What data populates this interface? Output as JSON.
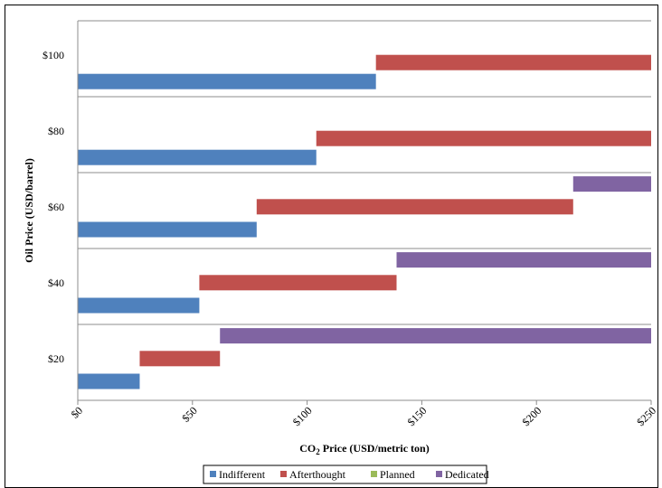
{
  "chart_data": {
    "type": "bar",
    "orientation": "horizontal-range",
    "xlabel_main": "CO",
    "xlabel_sub": "2",
    "xlabel_rest": " Price (USD/metric ton)",
    "ylabel": "Oil Price (USD/barrel)",
    "xlim": [
      0,
      250
    ],
    "x_ticks": [
      {
        "value": 0,
        "label": "$0"
      },
      {
        "value": 50,
        "label": "$50"
      },
      {
        "value": 100,
        "label": "$100"
      },
      {
        "value": 150,
        "label": "$150"
      },
      {
        "value": 200,
        "label": "$200"
      },
      {
        "value": 250,
        "label": "$250"
      }
    ],
    "categories": [
      "$20",
      "$40",
      "$60",
      "$80",
      "$100"
    ],
    "series": [
      {
        "name": "Indifferent",
        "color": "#4F81BD",
        "ranges": [
          [
            0,
            27
          ],
          [
            0,
            53
          ],
          [
            0,
            78
          ],
          [
            0,
            104
          ],
          [
            0,
            130
          ]
        ]
      },
      {
        "name": "Afterthought",
        "color": "#C0504D",
        "ranges": [
          [
            27,
            62
          ],
          [
            53,
            139
          ],
          [
            78,
            216
          ],
          [
            104,
            250
          ],
          [
            130,
            250
          ]
        ]
      },
      {
        "name": "Planned",
        "color": "#9BBB59",
        "ranges": [
          null,
          null,
          null,
          null,
          null
        ]
      },
      {
        "name": "Dedicated",
        "color": "#8064A2",
        "ranges": [
          [
            62,
            250
          ],
          [
            139,
            250
          ],
          [
            216,
            250
          ],
          null,
          null
        ]
      }
    ],
    "grid": "horizontal category separators",
    "legend_position": "bottom"
  }
}
